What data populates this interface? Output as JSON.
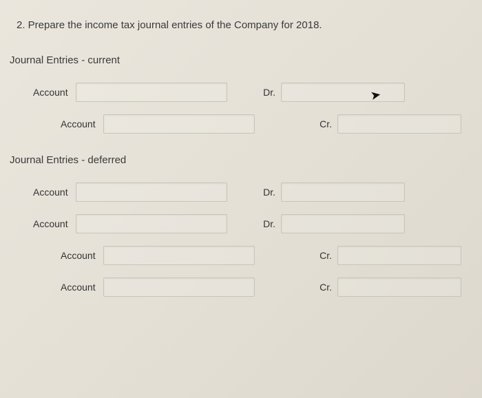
{
  "question": "2. Prepare the income tax journal entries of the Company for 2018.",
  "sections": {
    "current": {
      "title": "Journal Entries - current",
      "rows": [
        {
          "label": "Account",
          "drcr": "Dr.",
          "indent": 1
        },
        {
          "label": "Account",
          "drcr": "Cr.",
          "indent": 2
        }
      ]
    },
    "deferred": {
      "title": "Journal Entries - deferred",
      "rows": [
        {
          "label": "Account",
          "drcr": "Dr.",
          "indent": 1
        },
        {
          "label": "Account",
          "drcr": "Dr.",
          "indent": 1
        },
        {
          "label": "Account",
          "drcr": "Cr.",
          "indent": 2
        },
        {
          "label": "Account",
          "drcr": "Cr.",
          "indent": 2
        }
      ]
    }
  },
  "colors": {
    "text": "#3a3a3a",
    "input_border": "#c8c4ba",
    "bg_start": "#eae6dd",
    "bg_end": "#ddd8ce"
  },
  "typography": {
    "body_fontsize": 15,
    "label_fontsize": 14,
    "font_family": "Arial"
  }
}
